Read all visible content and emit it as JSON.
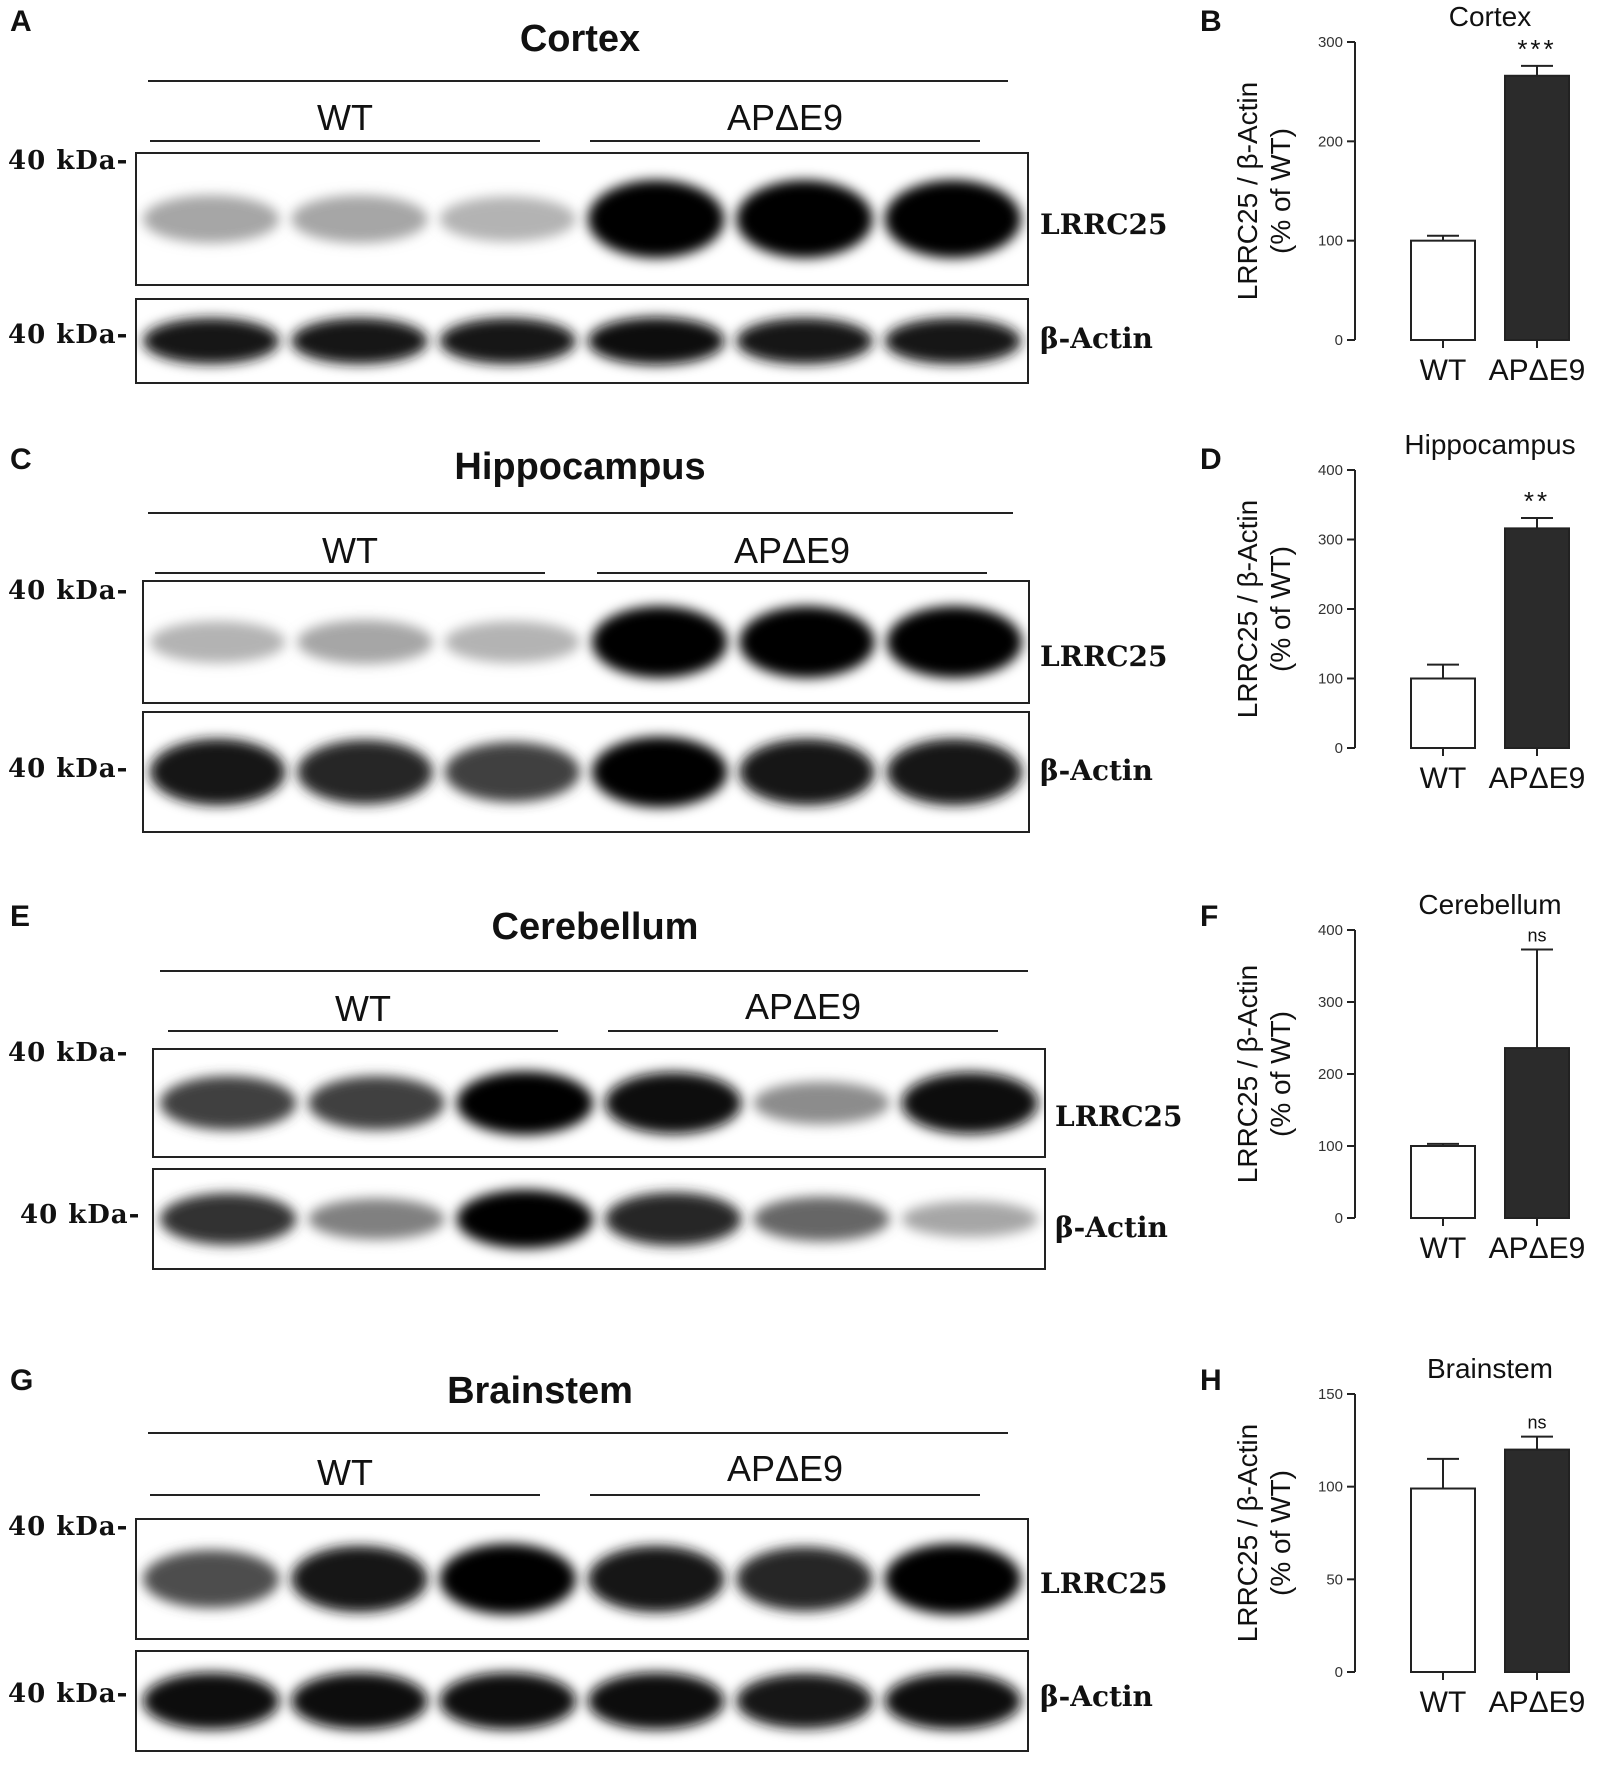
{
  "panels": [
    {
      "blot_letter": "A",
      "chart_letter": "B",
      "tissue": "Cortex",
      "group_wt": "WT",
      "group_ko": "APΔE9",
      "kda_top": "40 kDa-",
      "kda_bottom": "40 kDa-",
      "blot_top_name": "LRRC25",
      "blot_bottom_name": "β-Actin",
      "lrrc25_band_intensity": [
        0.35,
        0.35,
        0.3,
        1.0,
        1.0,
        1.0
      ],
      "actin_band_intensity": [
        0.9,
        0.9,
        0.9,
        0.95,
        0.9,
        0.9
      ]
    },
    {
      "blot_letter": "C",
      "chart_letter": "D",
      "tissue": "Hippocampus",
      "group_wt": "WT",
      "group_ko": "APΔE9",
      "kda_top": "40 kDa-",
      "kda_bottom": "40 kDa-",
      "blot_top_name": "LRRC25",
      "blot_bottom_name": "β-Actin",
      "lrrc25_band_intensity": [
        0.3,
        0.35,
        0.3,
        1.0,
        1.0,
        1.0
      ],
      "actin_band_intensity": [
        0.9,
        0.85,
        0.75,
        1.0,
        0.9,
        0.9
      ]
    },
    {
      "blot_letter": "E",
      "chart_letter": "F",
      "tissue": "Cerebellum",
      "group_wt": "WT",
      "group_ko": "APΔE9",
      "kda_top": "40 kDa-",
      "kda_bottom": "40 kDa-",
      "blot_top_name": "LRRC25",
      "blot_bottom_name": "β-Actin",
      "lrrc25_band_intensity": [
        0.75,
        0.75,
        1.0,
        0.95,
        0.45,
        0.95
      ],
      "actin_band_intensity": [
        0.8,
        0.5,
        1.0,
        0.85,
        0.6,
        0.35
      ]
    },
    {
      "blot_letter": "G",
      "chart_letter": "H",
      "tissue": "Brainstem",
      "group_wt": "WT",
      "group_ko": "APΔE9",
      "kda_top": "40 kDa-",
      "kda_bottom": "40 kDa-",
      "blot_top_name": "LRRC25",
      "blot_bottom_name": "β-Actin",
      "lrrc25_band_intensity": [
        0.7,
        0.9,
        1.0,
        0.9,
        0.85,
        1.0
      ],
      "actin_band_intensity": [
        0.95,
        0.95,
        0.95,
        0.95,
        0.9,
        0.95
      ]
    }
  ],
  "chart_data": [
    {
      "type": "bar",
      "title": "Cortex",
      "categories": [
        "WT",
        "APΔE9"
      ],
      "values": [
        100,
        266
      ],
      "errors": [
        5,
        10
      ],
      "colors": [
        "#ffffff",
        "#2b2b2b"
      ],
      "significance": "***",
      "ylabel": "LRRC25 / β-Actin",
      "ylabel2": "(% of WT)",
      "ylim": [
        0,
        300
      ],
      "yticks": [
        0,
        100,
        200,
        300
      ]
    },
    {
      "type": "bar",
      "title": "Hippocampus",
      "categories": [
        "WT",
        "APΔE9"
      ],
      "values": [
        100,
        316
      ],
      "errors": [
        20,
        15
      ],
      "colors": [
        "#ffffff",
        "#2b2b2b"
      ],
      "significance": "**",
      "ylabel": "LRRC25 / β-Actin",
      "ylabel2": "(% of WT)",
      "ylim": [
        0,
        400
      ],
      "yticks": [
        0,
        100,
        200,
        300,
        400
      ]
    },
    {
      "type": "bar",
      "title": "Cerebellum",
      "categories": [
        "WT",
        "APΔE9"
      ],
      "values": [
        100,
        236
      ],
      "errors": [
        3,
        137
      ],
      "colors": [
        "#ffffff",
        "#2b2b2b"
      ],
      "significance": "ns",
      "ylabel": "LRRC25 / β-Actin",
      "ylabel2": "(% of WT)",
      "ylim": [
        0,
        400
      ],
      "yticks": [
        0,
        100,
        200,
        300,
        400
      ]
    },
    {
      "type": "bar",
      "title": "Brainstem",
      "categories": [
        "WT",
        "APΔE9"
      ],
      "values": [
        99,
        120
      ],
      "errors": [
        16,
        7
      ],
      "colors": [
        "#ffffff",
        "#2b2b2b"
      ],
      "significance": "ns",
      "ylabel": "LRRC25 / β-Actin",
      "ylabel2": "(% of WT)",
      "ylim": [
        0,
        150
      ],
      "yticks": [
        0,
        50,
        100,
        150
      ]
    }
  ]
}
